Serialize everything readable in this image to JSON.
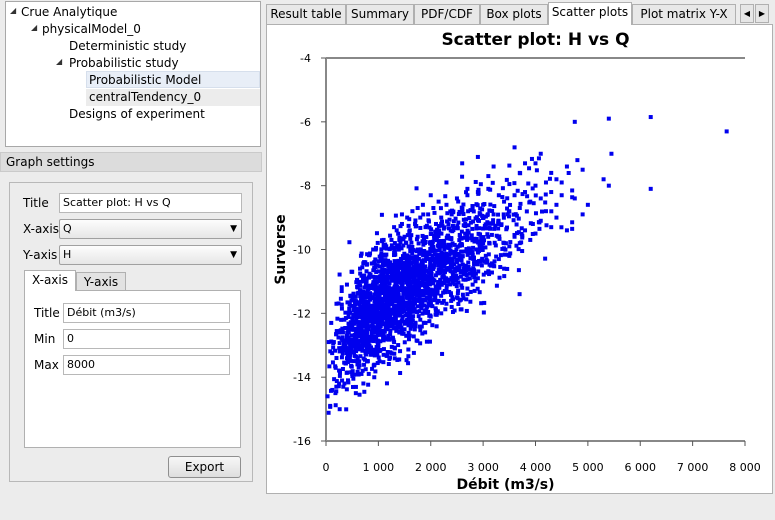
{
  "tree": {
    "root": "Crue Analytique",
    "model": "physicalModel_0",
    "deterministic": "Deterministic study",
    "probabilistic": "Probabilistic study",
    "prob_model": "Probabilistic Model",
    "central": "centralTendency_0",
    "doe": "Designs of experiment"
  },
  "graph_settings": {
    "header": "Graph settings",
    "title_label": "Title",
    "title_value": "Scatter plot: H vs Q",
    "xaxis_label": "X-axis",
    "xaxis_value": "Q",
    "yaxis_label": "Y-axis",
    "yaxis_value": "H",
    "tabs": [
      "X-axis",
      "Y-axis"
    ],
    "axis_title_label": "Title",
    "axis_title_value": "Débit  (m3/s)",
    "min_label": "Min",
    "min_value": "0",
    "max_label": "Max",
    "max_value": "8000",
    "export_label": "Export"
  },
  "tabs": [
    "Result table",
    "Summary",
    "PDF/CDF",
    "Box plots",
    "Scatter plots",
    "Plot matrix Y-X"
  ],
  "active_tab": "Scatter plots",
  "colors": {
    "points": "#0000ee",
    "selection": "#e8eef7"
  },
  "chart_data": {
    "type": "scatter",
    "title": "Scatter plot: H vs Q",
    "xlabel": "Débit  (m3/s)",
    "ylabel": "Surverse",
    "xlim": [
      0,
      8000
    ],
    "ylim": [
      -16,
      -4
    ],
    "xticks": [
      "0",
      "1 000",
      "2 000",
      "3 000",
      "4 000",
      "5 000",
      "6 000",
      "7 000",
      "8 000"
    ],
    "yticks": [
      "-16",
      "-14",
      "-12",
      "-10",
      "-8",
      "-6",
      "-4"
    ],
    "series": [
      {
        "name": "H vs Q",
        "points": [
          [
            4750,
            -6.0
          ],
          [
            5400,
            -5.9
          ],
          [
            6200,
            -5.85
          ],
          [
            7650,
            -6.3
          ],
          [
            5450,
            -7.0
          ],
          [
            6200,
            -8.1
          ],
          [
            5400,
            -8.0
          ],
          [
            4900,
            -7.5
          ],
          [
            5300,
            -7.8
          ],
          [
            4800,
            -7.2
          ],
          [
            4600,
            -7.4
          ],
          [
            4750,
            -8.4
          ],
          [
            4900,
            -8.9
          ],
          [
            5000,
            -8.6
          ],
          [
            4500,
            -7.9
          ],
          [
            4300,
            -7.6
          ],
          [
            4100,
            -7.0
          ],
          [
            3800,
            -7.3
          ],
          [
            3950,
            -9.2
          ],
          [
            4600,
            -9.4
          ],
          [
            4400,
            -9.0
          ],
          [
            3600,
            -6.8
          ],
          [
            2600,
            -7.3
          ],
          [
            2900,
            -7.1
          ],
          [
            3200,
            -7.4
          ],
          [
            3000,
            -9.8
          ],
          [
            3500,
            -10.2
          ],
          [
            2500,
            -10.4
          ],
          [
            2200,
            -10.6
          ],
          [
            2800,
            -10.8
          ],
          [
            1900,
            -11.1
          ],
          [
            3100,
            -7.7
          ],
          [
            3300,
            -8.3
          ],
          [
            2700,
            -8.1
          ],
          [
            2300,
            -7.9
          ],
          [
            2000,
            -8.3
          ],
          [
            1750,
            -8.7
          ],
          [
            1450,
            -8.9
          ],
          [
            1300,
            -9.3
          ],
          [
            1100,
            -9.7
          ],
          [
            900,
            -10.0
          ],
          [
            750,
            -10.4
          ],
          [
            650,
            -10.6
          ],
          [
            500,
            -10.7
          ],
          [
            400,
            -11.1
          ],
          [
            300,
            -11.3
          ],
          [
            200,
            -11.7
          ],
          [
            100,
            -12.3
          ],
          [
            50,
            -12.9
          ],
          [
            30,
            -14.6
          ],
          [
            80,
            -14.9
          ],
          [
            120,
            -14.4
          ],
          [
            180,
            -14.5
          ],
          [
            250,
            -14.2
          ],
          [
            330,
            -14.3
          ],
          [
            420,
            -14.1
          ],
          [
            500,
            -13.9
          ],
          [
            600,
            -13.6
          ],
          [
            700,
            -13.8
          ],
          [
            800,
            -13.5
          ],
          [
            900,
            -13.2
          ],
          [
            1000,
            -13.0
          ],
          [
            1100,
            -13.3
          ],
          [
            1200,
            -12.8
          ],
          [
            1300,
            -12.9
          ],
          [
            1400,
            -12.6
          ],
          [
            1500,
            -12.5
          ],
          [
            1600,
            -12.7
          ],
          [
            1700,
            -12.4
          ],
          [
            1800,
            -12.2
          ],
          [
            1900,
            -12.3
          ],
          [
            2000,
            -12.1
          ],
          [
            2100,
            -11.9
          ],
          [
            2200,
            -12.0
          ],
          [
            2300,
            -11.7
          ],
          [
            2400,
            -11.8
          ],
          [
            2500,
            -11.5
          ],
          [
            2600,
            -11.2
          ],
          [
            2700,
            -11.4
          ],
          [
            2800,
            -11.1
          ],
          [
            2900,
            -10.9
          ],
          [
            3000,
            -11.0
          ],
          [
            3100,
            -10.7
          ],
          [
            3200,
            -10.5
          ],
          [
            3300,
            -10.3
          ],
          [
            3400,
            -10.6
          ],
          [
            3500,
            -9.9
          ],
          [
            3600,
            -9.6
          ],
          [
            3700,
            -9.8
          ],
          [
            3800,
            -9.4
          ],
          [
            3900,
            -9.7
          ],
          [
            4000,
            -9.5
          ],
          [
            4100,
            -9.1
          ],
          [
            4200,
            -8.8
          ],
          [
            4300,
            -9.3
          ],
          [
            4400,
            -8.6
          ],
          [
            4500,
            -8.3
          ],
          [
            150,
            -12.9
          ],
          [
            200,
            -13.4
          ],
          [
            250,
            -12.6
          ],
          [
            300,
            -13.1
          ],
          [
            350,
            -12.2
          ],
          [
            400,
            -12.8
          ],
          [
            450,
            -11.9
          ],
          [
            500,
            -12.4
          ],
          [
            550,
            -11.6
          ],
          [
            600,
            -12.0
          ],
          [
            650,
            -11.3
          ],
          [
            700,
            -11.8
          ],
          [
            750,
            -11.0
          ],
          [
            800,
            -11.5
          ],
          [
            850,
            -10.8
          ],
          [
            900,
            -11.2
          ],
          [
            950,
            -10.5
          ],
          [
            1000,
            -11.0
          ],
          [
            1050,
            -10.2
          ],
          [
            1100,
            -10.7
          ],
          [
            1150,
            -9.9
          ],
          [
            1200,
            -10.4
          ],
          [
            1250,
            -9.7
          ],
          [
            1300,
            -10.1
          ],
          [
            1350,
            -9.4
          ],
          [
            1400,
            -9.9
          ],
          [
            1450,
            -9.2
          ],
          [
            1500,
            -9.6
          ],
          [
            1550,
            -9.0
          ],
          [
            1600,
            -9.4
          ],
          [
            1650,
            -8.8
          ],
          [
            1700,
            -9.2
          ],
          [
            1750,
            -9.6
          ],
          [
            1800,
            -9.0
          ],
          [
            1850,
            -8.6
          ],
          [
            1900,
            -9.3
          ],
          [
            1950,
            -8.9
          ],
          [
            2000,
            -9.5
          ],
          [
            2050,
            -8.7
          ],
          [
            2100,
            -9.2
          ],
          [
            2150,
            -8.5
          ],
          [
            2200,
            -9.0
          ],
          [
            2300,
            -8.6
          ],
          [
            2400,
            -8.9
          ],
          [
            2500,
            -8.4
          ],
          [
            2600,
            -8.8
          ],
          [
            2700,
            -8.3
          ],
          [
            2800,
            -8.7
          ],
          [
            2900,
            -8.2
          ],
          [
            3000,
            -8.6
          ],
          [
            3100,
            -8.1
          ],
          [
            3200,
            -8.9
          ],
          [
            3300,
            -9.2
          ],
          [
            3400,
            -8.5
          ],
          [
            3500,
            -8.8
          ],
          [
            3600,
            -8.3
          ],
          [
            3700,
            -8.7
          ],
          [
            3800,
            -8.2
          ],
          [
            3900,
            -8.5
          ],
          [
            4000,
            -8.0
          ],
          [
            4100,
            -8.4
          ],
          [
            4200,
            -7.9
          ],
          [
            4300,
            -8.2
          ],
          [
            4400,
            -7.8
          ],
          [
            4000,
            -7.3
          ],
          [
            3700,
            -7.6
          ]
        ]
      }
    ]
  }
}
